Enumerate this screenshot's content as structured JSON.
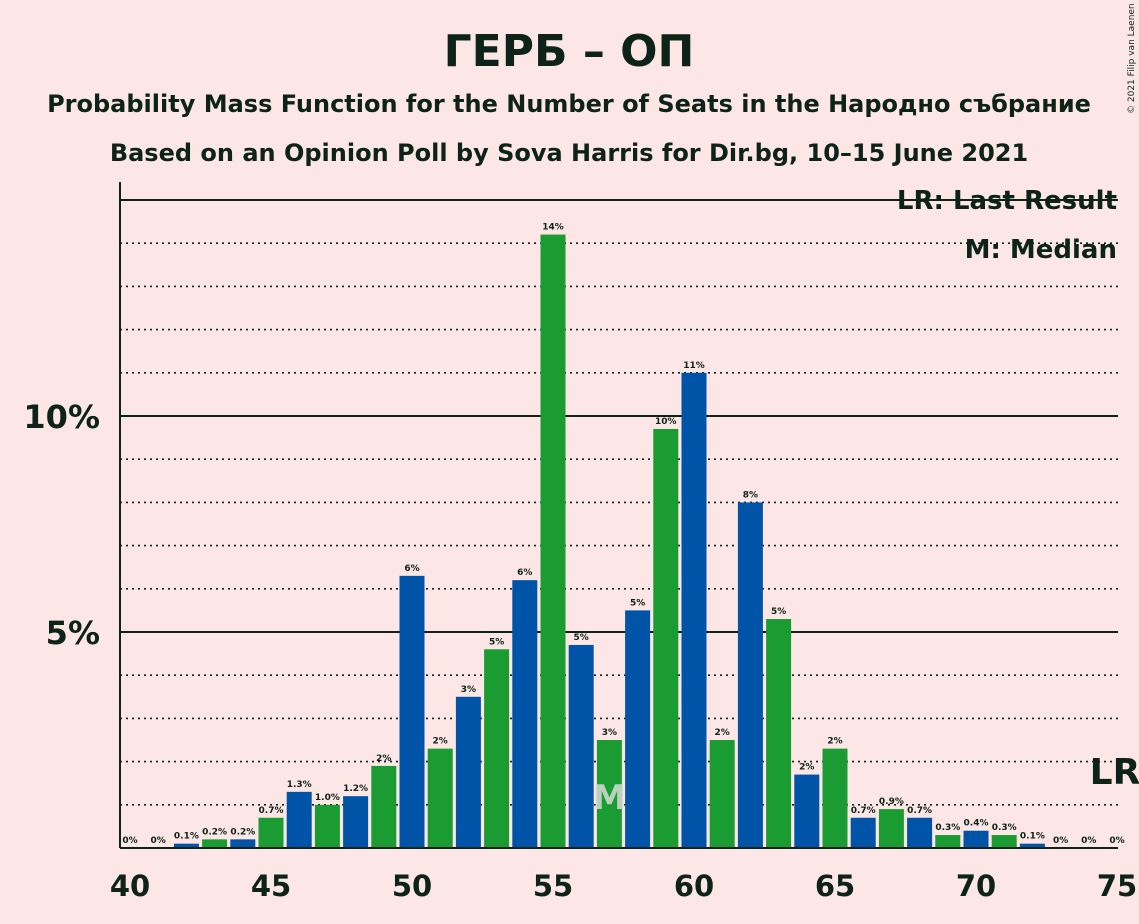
{
  "chart_data": {
    "type": "bar",
    "title": "ГЕРБ – ОП",
    "subtitle": "Probability Mass Function for the Number of Seats in the Народно събрание",
    "subtitle2": "Based on an Opinion Poll by Sova Harris for Dir.bg, 10–15 June 2021",
    "copyright": "© 2021 Filip van Laenen",
    "legend": {
      "lr": "LR: Last Result",
      "median": "M: Median",
      "placement": "top-right"
    },
    "x": [
      40,
      41,
      42,
      43,
      44,
      45,
      46,
      47,
      48,
      49,
      50,
      51,
      52,
      53,
      54,
      55,
      56,
      57,
      58,
      59,
      60,
      61,
      62,
      63,
      64,
      65,
      66,
      67,
      68,
      69,
      70,
      71,
      72,
      73,
      74,
      75
    ],
    "values": [
      0,
      0,
      0.1,
      0.2,
      0.2,
      0.7,
      1.3,
      1.0,
      1.2,
      1.9,
      6.3,
      2.3,
      3.5,
      4.6,
      6.2,
      14.2,
      4.7,
      2.5,
      5.5,
      9.7,
      11.0,
      2.5,
      8.0,
      5.3,
      1.7,
      2.3,
      0.7,
      0.9,
      0.7,
      0.3,
      0.4,
      0.3,
      0.1,
      0,
      0,
      0
    ],
    "labels": [
      "0%",
      "0%",
      "0.1%",
      "0.2%",
      "0.2%",
      "0.7%",
      "1.3%",
      "1.0%",
      "1.2%",
      "2%",
      "6%",
      "2%",
      "3%",
      "5%",
      "6%",
      "14%",
      "5%",
      "3%",
      "5%",
      "10%",
      "11%",
      "2%",
      "8%",
      "5%",
      "2%",
      "2%",
      "0.7%",
      "0.9%",
      "0.7%",
      "0.3%",
      "0.4%",
      "0.3%",
      "0.1%",
      "0%",
      "0%",
      "0%"
    ],
    "colors": [
      "blue",
      "green",
      "blue",
      "green",
      "blue",
      "green",
      "blue",
      "green",
      "blue",
      "green",
      "blue",
      "green",
      "blue",
      "green",
      "blue",
      "green",
      "blue",
      "green",
      "blue",
      "green",
      "blue",
      "green",
      "blue",
      "green",
      "blue",
      "green",
      "blue",
      "green",
      "blue",
      "green",
      "blue",
      "green",
      "blue",
      "green",
      "blue",
      "green"
    ],
    "palette": {
      "blue": "#0054a8",
      "green": "#1b9c33",
      "background": "#fde7e6",
      "text": "#0d2218"
    },
    "xticks": [
      40,
      45,
      50,
      55,
      60,
      65,
      70,
      75
    ],
    "yticks": [
      {
        "value": 5,
        "label": "5%"
      },
      {
        "value": 10,
        "label": "10%"
      }
    ],
    "ylim": [
      0,
      15.4
    ],
    "grid": "dotted every 1%, solid at 5% and 10%",
    "median": 57,
    "median_mark": "M",
    "last_result": 75,
    "last_result_mark": "LR"
  }
}
